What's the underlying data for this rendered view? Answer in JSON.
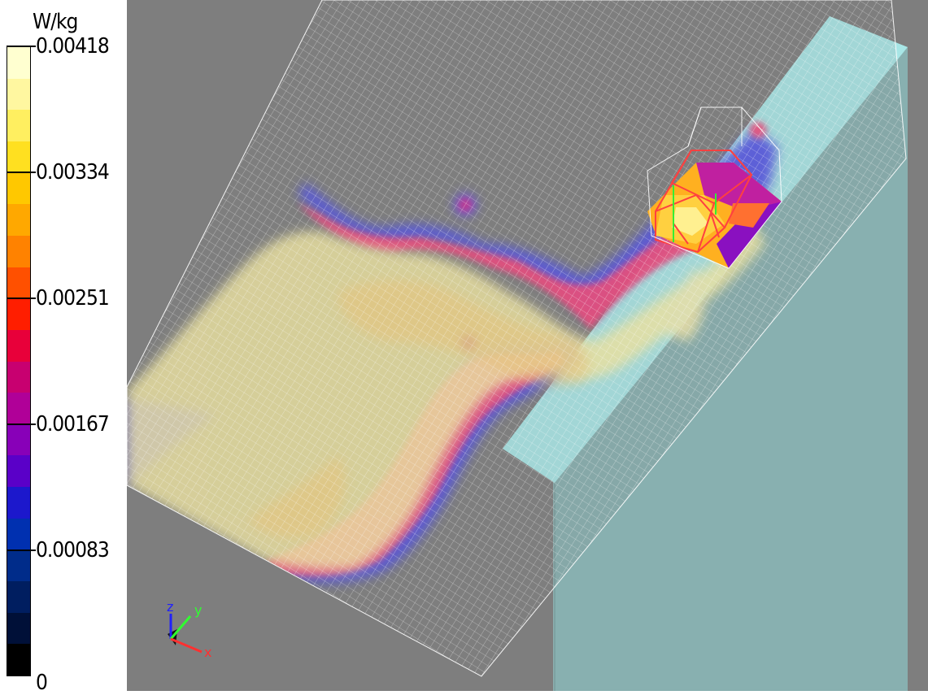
{
  "legend": {
    "unit": "W/kg",
    "ticks": [
      {
        "label": "0.00418",
        "fraction": 1.0
      },
      {
        "label": "0.00334",
        "fraction": 0.8
      },
      {
        "label": "0.00251",
        "fraction": 0.6
      },
      {
        "label": "0.00167",
        "fraction": 0.4
      },
      {
        "label": "0.00083",
        "fraction": 0.2
      },
      {
        "label": "0",
        "fraction": 0.0
      }
    ],
    "colors_top_to_bottom": [
      "#ffffd0",
      "#fff7a0",
      "#ffef60",
      "#ffe020",
      "#ffc800",
      "#ffa800",
      "#ff8200",
      "#ff5000",
      "#ff1e00",
      "#e8003a",
      "#c80070",
      "#b00098",
      "#8800b8",
      "#5a00c8",
      "#1c18cc",
      "#0030b0",
      "#002c8a",
      "#001e60",
      "#001038",
      "#000000"
    ]
  },
  "axes": {
    "x_label": "x",
    "y_label": "y",
    "z_label": "z",
    "x_color": "#ff3030",
    "y_color": "#30ff30",
    "z_color": "#2020ff"
  },
  "scene": {
    "background": "#7e7e7e",
    "phantom_color": "#a8e6e6",
    "grid_color": "#ffffff"
  }
}
